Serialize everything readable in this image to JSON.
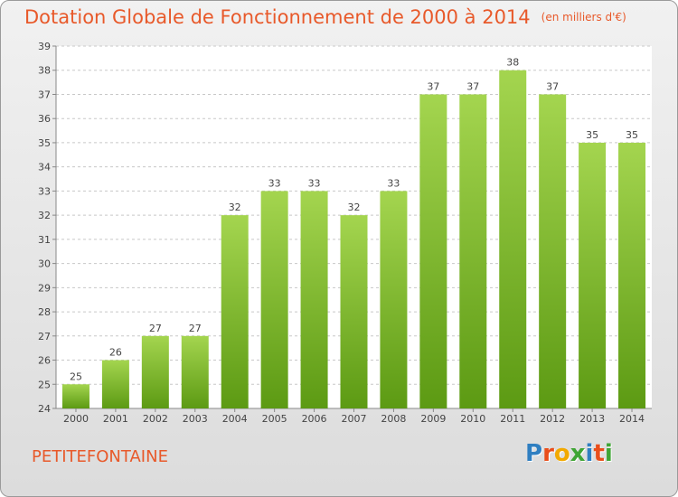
{
  "header": {
    "title": "Dotation Globale de Fonctionnement de 2000 à 2014",
    "subtitle": "(en milliers d'€)"
  },
  "commune": "PETITEFONTAINE",
  "logo": {
    "text": "Proxiti",
    "letters": [
      {
        "char": "P",
        "color": "#2f7fc1"
      },
      {
        "char": "r",
        "color": "#e94e1b"
      },
      {
        "char": "o",
        "color": "#f2a900"
      },
      {
        "char": "x",
        "color": "#3fa535"
      },
      {
        "char": "i",
        "color": "#2f7fc1"
      },
      {
        "char": "t",
        "color": "#e94e1b"
      },
      {
        "char": "i",
        "color": "#3fa535"
      }
    ]
  },
  "colors": {
    "bar_light": "#a4d54f",
    "bar_dark": "#5c9a13",
    "accent": "#e8592a"
  },
  "chart_data": {
    "type": "bar",
    "categories": [
      "2000",
      "2001",
      "2002",
      "2003",
      "2004",
      "2005",
      "2006",
      "2007",
      "2008",
      "2009",
      "2010",
      "2011",
      "2012",
      "2013",
      "2014"
    ],
    "values": [
      25,
      26,
      27,
      27,
      32,
      33,
      33,
      32,
      33,
      37,
      37,
      38,
      37,
      35,
      35
    ],
    "ylim": [
      24,
      39
    ],
    "yticks": [
      24,
      25,
      26,
      27,
      28,
      29,
      30,
      31,
      32,
      33,
      34,
      35,
      36,
      37,
      38,
      39
    ],
    "grid": true,
    "grid_style": "dashed-horizontal",
    "title": "Dotation Globale de Fonctionnement de 2000 à 2014",
    "ylabel": "",
    "xlabel": ""
  }
}
